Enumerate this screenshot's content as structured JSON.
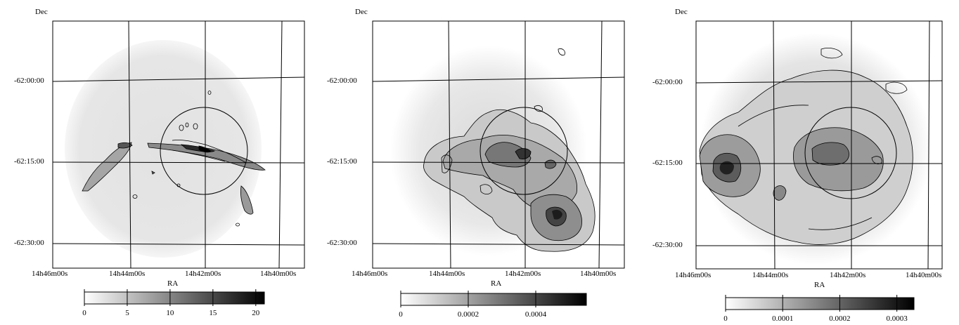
{
  "panels": [
    {
      "dec_axis_label": "Dec",
      "ra_axis_label": "RA",
      "dec_ticks": [
        "-62:00:00",
        "-62:15:00",
        "-62:30:00"
      ],
      "ra_ticks": [
        "14h46m00s",
        "14h44m00s",
        "14h42m00s",
        "14h40m00s"
      ],
      "colorbar": {
        "min": 0,
        "max": 21,
        "ticks": [
          "0",
          "5",
          "10",
          "15",
          "20"
        ]
      }
    },
    {
      "dec_axis_label": "Dec",
      "ra_axis_label": "RA",
      "dec_ticks": [
        "-62:00:00",
        "-62:15:00",
        "-62:30:00"
      ],
      "ra_ticks": [
        "14h46m00s",
        "14h44m00s",
        "14h42m00s",
        "14h40m00s"
      ],
      "colorbar": {
        "min": 0,
        "max": 0.00055,
        "ticks": [
          "0",
          "0.0002",
          "0.0004"
        ]
      }
    },
    {
      "dec_axis_label": "Dec",
      "ra_axis_label": "RA",
      "dec_ticks": [
        "-62:00:00",
        "-62:15:00",
        "-62:30:00"
      ],
      "ra_ticks": [
        "14h46m00s",
        "14h44m00s",
        "14h42m00s",
        "14h40m00s"
      ],
      "colorbar": {
        "min": 0,
        "max": 0.00033,
        "ticks": [
          "0",
          "0.0001",
          "0.0002",
          "0.0003"
        ]
      }
    }
  ]
}
